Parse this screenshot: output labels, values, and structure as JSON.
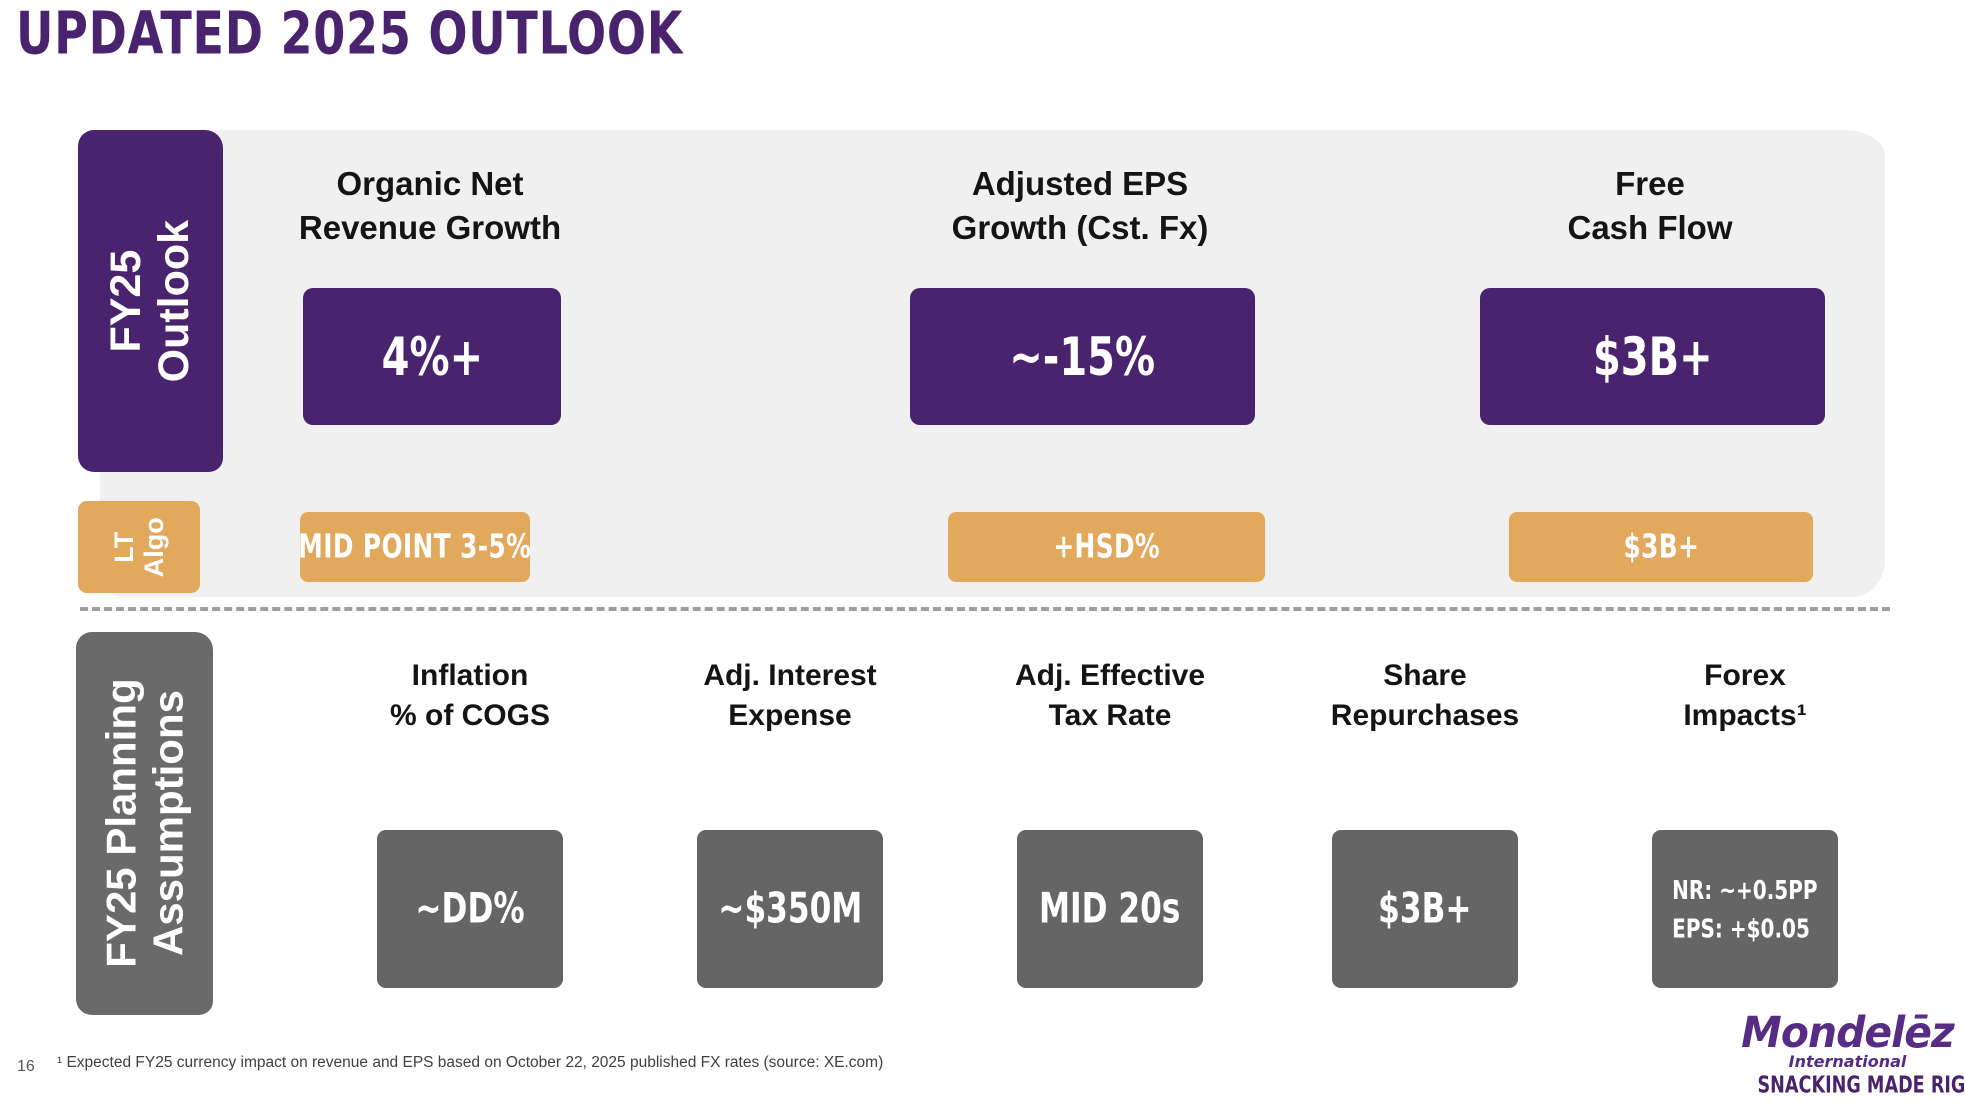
{
  "title": "UPDATED 2025 OUTLOOK",
  "colors": {
    "purple": "#4A236F",
    "orange": "#E2A85C",
    "dark_gray_box": "#656565",
    "planning_sidebar_gray": "#6A6A6A",
    "panel_gray": "#F0F0F0",
    "logo_purple": "#572C85"
  },
  "outlook_section": {
    "sidebar_label": {
      "line1": "FY25",
      "line2": "Outlook"
    },
    "columns": [
      {
        "header_line1": "Organic Net",
        "header_line2": "Revenue Growth",
        "value": "4%+"
      },
      {
        "header_line1": "Adjusted EPS",
        "header_line2": "Growth (Cst. Fx)",
        "value": "~-15%"
      },
      {
        "header_line1": "Free",
        "header_line2": "Cash Flow",
        "value": "$3B+"
      }
    ]
  },
  "lt_algo_row": {
    "sidebar_label": {
      "line1": "LT",
      "line2": "Algo"
    },
    "values": [
      "MID POINT 3-5%",
      "+HSD%",
      "$3B+"
    ]
  },
  "planning_section": {
    "sidebar_label": {
      "line1": "FY25 Planning",
      "line2": "Assumptions"
    },
    "columns": [
      {
        "header_line1": "Inflation",
        "header_line2": "% of COGS",
        "value": "~DD%"
      },
      {
        "header_line1": "Adj. Interest",
        "header_line2": "Expense",
        "value": "~$350M"
      },
      {
        "header_line1": "Adj. Effective",
        "header_line2": "Tax Rate",
        "value": "MID 20s"
      },
      {
        "header_line1": "Share",
        "header_line2": "Repurchases",
        "value": "$3B+"
      },
      {
        "header_line1": "Forex",
        "header_line2": "Impacts¹",
        "value_line1": "NR: ~+0.5PP",
        "value_line2": "EPS: +$0.05"
      }
    ]
  },
  "footer": {
    "page_number": "16",
    "footnote": "¹ Expected FY25 currency impact on revenue and EPS based on October 22, 2025 published FX rates (source: XE.com)"
  },
  "logo": {
    "brand": "Mondelēz",
    "sub": "International",
    "tagline": "SNACKING MADE RIGHT"
  }
}
